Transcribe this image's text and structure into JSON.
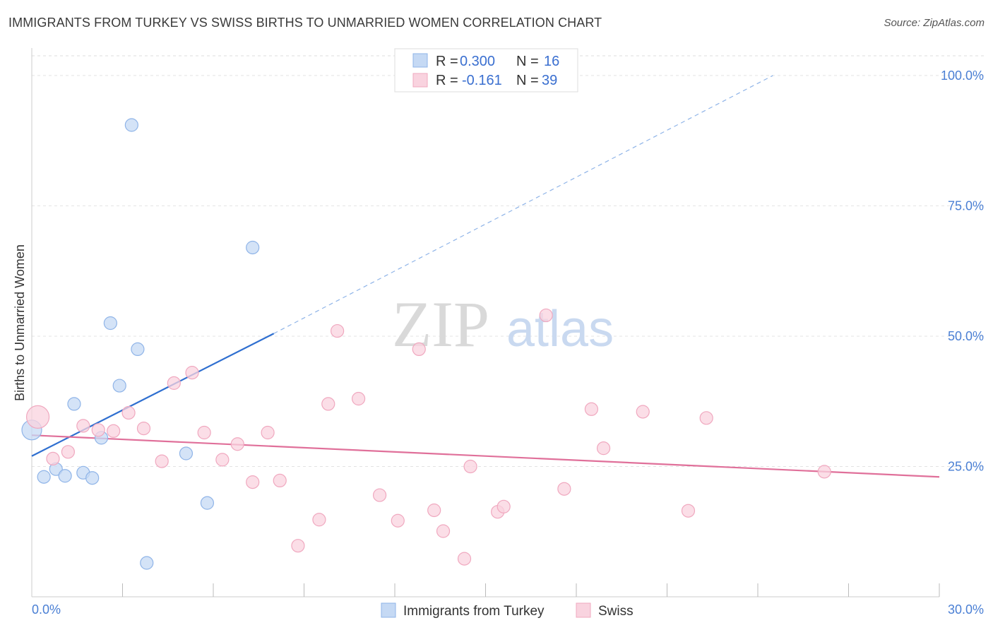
{
  "title": "IMMIGRANTS FROM TURKEY VS SWISS BIRTHS TO UNMARRIED WOMEN CORRELATION CHART",
  "source": "Source: ZipAtlas.com",
  "watermark": {
    "zip": "ZIP",
    "atlas": "atlas"
  },
  "chart_data": {
    "type": "scatter",
    "title": "IMMIGRANTS FROM TURKEY VS SWISS BIRTHS TO UNMARRIED WOMEN CORRELATION CHART",
    "ylabel": "Births to Unmarried Women",
    "xlabel": "",
    "xlim": [
      0,
      30
    ],
    "ylim": [
      0,
      105
    ],
    "x_tick_labels": {
      "min": "0.0%",
      "max": "30.0%"
    },
    "y_ticks": [
      {
        "value": 25,
        "label": "25.0%"
      },
      {
        "value": 50,
        "label": "50.0%"
      },
      {
        "value": 75,
        "label": "75.0%"
      },
      {
        "value": 100,
        "label": "100.0%"
      }
    ],
    "legend": {
      "entries": [
        {
          "r_label": "R =",
          "r_value": "0.300",
          "n_label": "N =",
          "n_value": "16"
        },
        {
          "r_label": "R =",
          "r_value": "-0.161",
          "n_label": "N =",
          "n_value": "39"
        }
      ]
    },
    "series": [
      {
        "name": "Immigrants from Turkey",
        "color": "#8fb4e8",
        "fill": "#c5d9f4",
        "line_color": "#2f6fd0",
        "trend": {
          "x0": 0,
          "y0": 27,
          "x1": 8,
          "y1": 50.5,
          "dash_x1": 24.5,
          "dash_y1": 100
        },
        "points": [
          [
            0.0,
            32,
            14
          ],
          [
            0.4,
            23,
            9
          ],
          [
            0.8,
            24.5,
            9
          ],
          [
            1.1,
            23.2,
            9
          ],
          [
            1.4,
            37,
            9
          ],
          [
            1.7,
            23.8,
            9
          ],
          [
            2.0,
            22.8,
            9
          ],
          [
            2.3,
            30.5,
            9
          ],
          [
            2.6,
            52.5,
            9
          ],
          [
            2.9,
            40.5,
            9
          ],
          [
            3.3,
            90.5,
            9
          ],
          [
            3.5,
            47.5,
            9
          ],
          [
            3.8,
            6.5,
            9
          ],
          [
            5.1,
            27.5,
            9
          ],
          [
            5.8,
            18,
            9
          ],
          [
            7.3,
            67,
            9
          ]
        ]
      },
      {
        "name": "Swiss",
        "color": "#f0a8bf",
        "fill": "#f9d3df",
        "line_color": "#e0709a",
        "trend": {
          "x0": 0,
          "y0": 31,
          "x1": 30,
          "y1": 23
        },
        "points": [
          [
            0.2,
            34.5,
            16
          ],
          [
            0.7,
            26.5,
            9
          ],
          [
            1.2,
            27.8,
            9
          ],
          [
            1.7,
            32.8,
            9
          ],
          [
            2.2,
            32,
            9
          ],
          [
            2.7,
            31.8,
            9
          ],
          [
            3.2,
            35.3,
            9
          ],
          [
            3.7,
            32.3,
            9
          ],
          [
            4.3,
            26,
            9
          ],
          [
            4.7,
            41,
            9
          ],
          [
            5.3,
            43,
            9
          ],
          [
            5.7,
            31.5,
            9
          ],
          [
            6.3,
            26.3,
            9
          ],
          [
            6.8,
            29.3,
            9
          ],
          [
            7.3,
            22,
            9
          ],
          [
            7.8,
            31.5,
            9
          ],
          [
            8.2,
            22.3,
            9
          ],
          [
            8.8,
            9.8,
            9
          ],
          [
            9.5,
            14.8,
            9
          ],
          [
            9.8,
            37,
            9
          ],
          [
            10.1,
            51,
            9
          ],
          [
            10.8,
            38,
            9
          ],
          [
            11.5,
            19.5,
            9
          ],
          [
            12.1,
            14.6,
            9
          ],
          [
            12.8,
            47.5,
            9
          ],
          [
            13.3,
            16.6,
            9
          ],
          [
            13.6,
            12.6,
            9
          ],
          [
            14.3,
            7.3,
            9
          ],
          [
            14.5,
            25,
            9
          ],
          [
            15.4,
            16.3,
            9
          ],
          [
            15.6,
            17.3,
            9
          ],
          [
            17.0,
            54,
            9
          ],
          [
            17.6,
            20.7,
            9
          ],
          [
            18.5,
            36,
            9
          ],
          [
            18.9,
            28.5,
            9
          ],
          [
            20.2,
            35.5,
            9
          ],
          [
            21.7,
            16.5,
            9
          ],
          [
            22.3,
            34.3,
            9
          ],
          [
            26.2,
            24,
            9
          ]
        ]
      }
    ]
  }
}
